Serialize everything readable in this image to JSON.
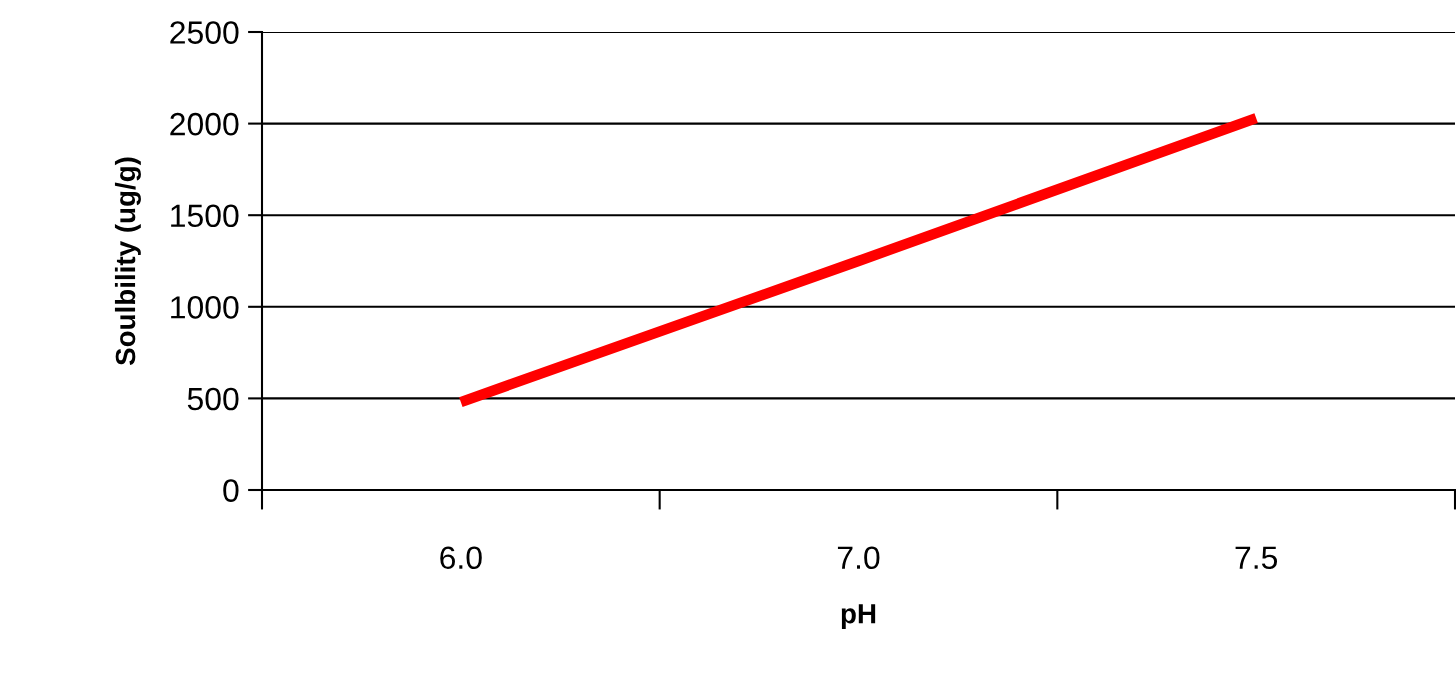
{
  "chart_data": {
    "type": "line",
    "xlabel": "pH",
    "ylabel": "Soulbility (ug/g)",
    "categories": [
      "6.0",
      "7.0",
      "7.5"
    ],
    "series": [
      {
        "color": "#ff0000",
        "values": [
          480,
          1250,
          2030
        ]
      }
    ],
    "ylim": [
      0,
      2500
    ],
    "yticks": [
      0,
      500,
      1000,
      1500,
      2000,
      2500
    ],
    "grid": "y",
    "legend": false,
    "marker": "none",
    "line_style": "solid"
  }
}
